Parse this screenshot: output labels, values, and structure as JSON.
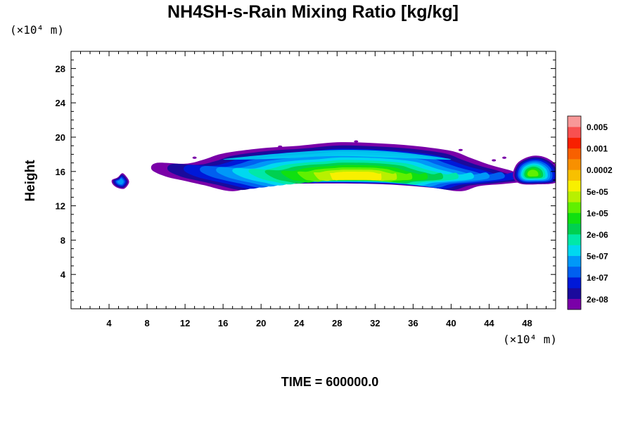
{
  "chart_data": {
    "type": "heatmap",
    "title": "NH4SH-s-Rain Mixing Ratio [kg/kg]",
    "ylabel": "Height",
    "x_unit": "(×10⁴ m)",
    "y_unit": "(×10⁴ m)",
    "xlim": [
      0,
      51
    ],
    "ylim": [
      0,
      30
    ],
    "x_ticks": [
      4,
      8,
      12,
      16,
      20,
      24,
      28,
      32,
      36,
      40,
      44,
      48
    ],
    "y_ticks": [
      4,
      8,
      12,
      16,
      20,
      24,
      28
    ],
    "time_label": "TIME = 600000.0",
    "grid": false,
    "colorbar": {
      "placement": "right",
      "labels": [
        "0.005",
        "0.001",
        "0.0002",
        "5e-05",
        "1e-05",
        "2e-06",
        "5e-07",
        "1e-07",
        "2e-08"
      ],
      "colors": [
        "#7a00a8",
        "#1a0a9c",
        "#0018d8",
        "#0060f0",
        "#0098f8",
        "#00d8f0",
        "#00e8a8",
        "#00d050",
        "#10e010",
        "#60f000",
        "#b8f000",
        "#f8f000",
        "#f8c000",
        "#f89000",
        "#f86000",
        "#f82000",
        "#f85050",
        "#f89898"
      ]
    },
    "features": [
      {
        "name": "main-layer",
        "x": [
          8.5,
          50
        ],
        "y": [
          13.5,
          19.5
        ],
        "peak_level": 11,
        "peak_center": [
          30,
          15.5
        ]
      },
      {
        "name": "left-blob",
        "x": [
          4.2,
          6
        ],
        "y": [
          14,
          15.8
        ],
        "peak_level": 4
      },
      {
        "name": "right-blob",
        "x": [
          46.5,
          51
        ],
        "y": [
          14.5,
          18
        ],
        "peak_level": 9
      }
    ]
  }
}
